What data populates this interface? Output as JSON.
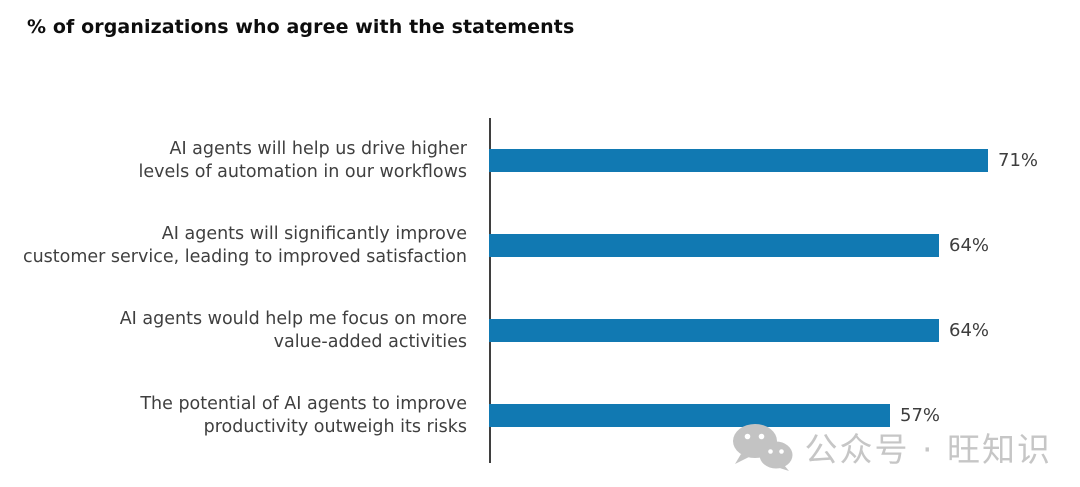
{
  "title": "% of organizations who agree with the statements",
  "chart_data": {
    "type": "bar",
    "orientation": "horizontal",
    "title": "% of organizations who agree with the statements",
    "categories": [
      "AI agents will help us drive higher\nlevels of automation in our workflows",
      "AI agents will significantly improve\ncustomer service, leading to improved satisfaction",
      "AI agents would help me focus on more\nvalue-added activities",
      "The potential of AI agents to improve\nproductivity outweigh its risks"
    ],
    "values": [
      71,
      64,
      64,
      57
    ],
    "data_labels": [
      "71%",
      "64%",
      "64%",
      "57%"
    ],
    "xlim": [
      0,
      84
    ],
    "grid": false,
    "legend": "none",
    "bar_color": "#1179b2",
    "axis_color": "#3f3f3f",
    "label_color": "#3f3f3f"
  },
  "watermark": {
    "icon": "wechat-icon",
    "text": "公众号 · 旺知识",
    "color": "#c6c6c6"
  }
}
